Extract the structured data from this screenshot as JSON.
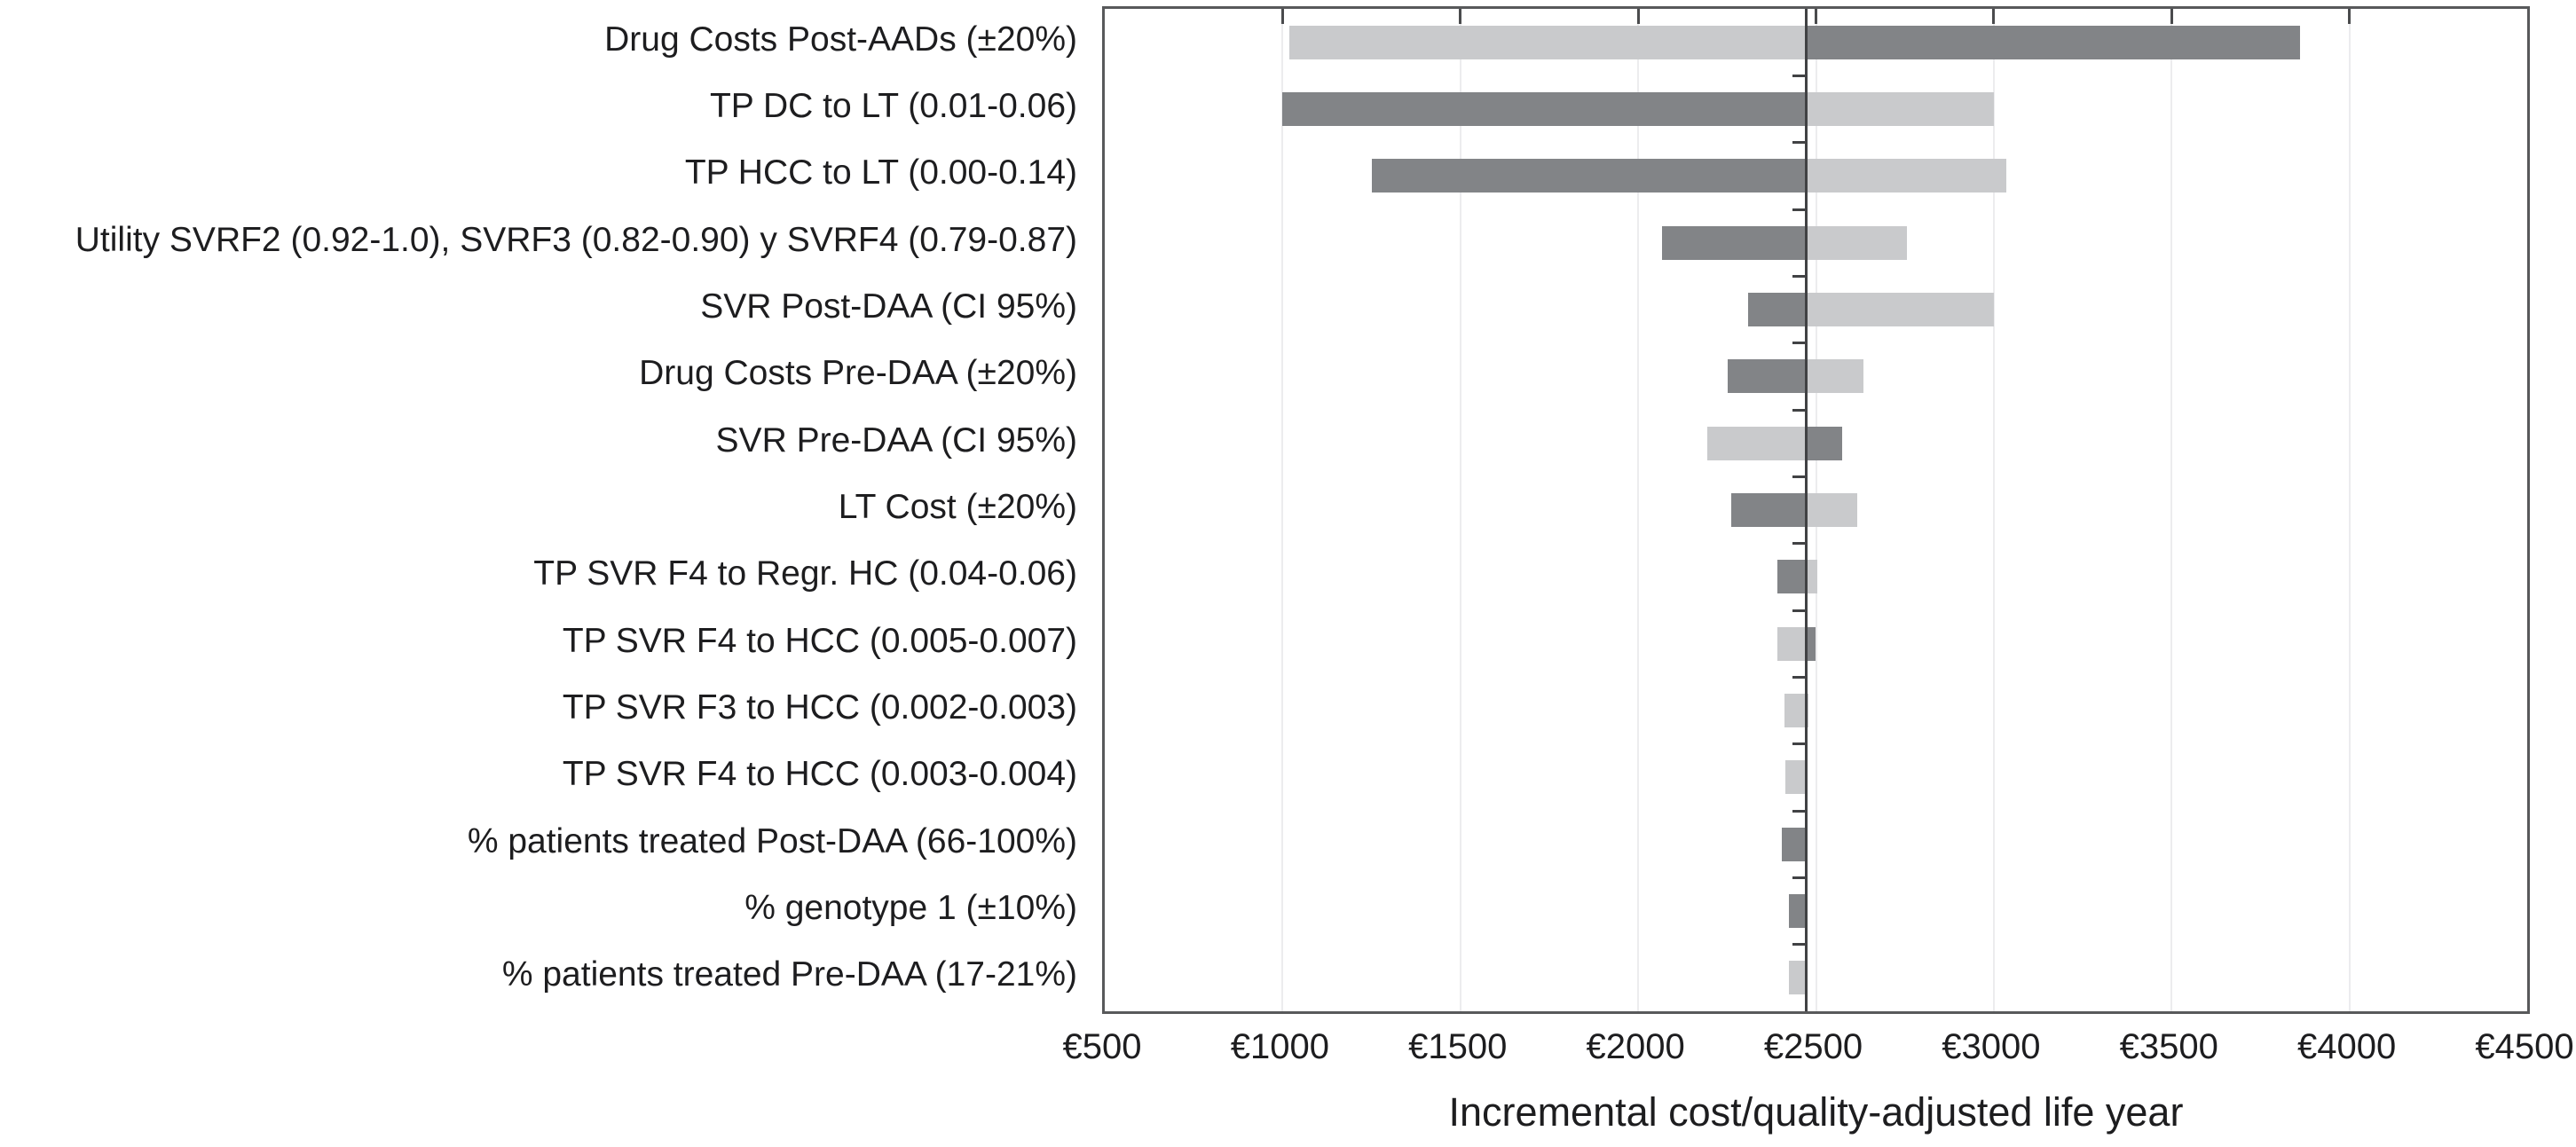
{
  "chart_data": {
    "type": "bar",
    "subtype": "tornado",
    "title": "",
    "xlabel": "Incremental cost/quality-adjusted life year",
    "ylabel": "",
    "xlim": [
      500,
      4500
    ],
    "x_ticks": [
      500,
      1000,
      1500,
      2000,
      2500,
      3000,
      3500,
      4000,
      4500
    ],
    "x_tick_labels": [
      "€500",
      "€1000",
      "€1500",
      "€2000",
      "€2500",
      "€3000",
      "€3500",
      "€4000",
      "€4500"
    ],
    "grid": "faint vertical gridlines at each tick",
    "legend": "none",
    "baseline_value": 2473,
    "bar_colors": {
      "light": "#c9cacc",
      "dark": "#828487"
    },
    "axis_color": "#58595b",
    "baseline_color": "#414244",
    "rows": [
      {
        "label": "Drug Costs Post-AADs (±20%)",
        "low": 1020,
        "high": 3860,
        "low_shade": "light",
        "high_shade": "dark"
      },
      {
        "label": "TP DC to LT (0.01-0.06)",
        "low": 1000,
        "high": 3000,
        "low_shade": "dark",
        "high_shade": "light"
      },
      {
        "label": "TP HCC to LT (0.00-0.14)",
        "low": 1250,
        "high": 3035,
        "low_shade": "dark",
        "high_shade": "light"
      },
      {
        "label": "Utility SVRF2 (0.92-1.0), SVRF3 (0.82-0.90) y SVRF4 (0.79-0.87)",
        "low": 2068,
        "high": 2757,
        "low_shade": "dark",
        "high_shade": "light"
      },
      {
        "label": "SVR Post-DAA (CI 95%)",
        "low": 2310,
        "high": 3000,
        "low_shade": "dark",
        "high_shade": "light"
      },
      {
        "label": "Drug Costs Pre-DAA (±20%)",
        "low": 2252,
        "high": 2633,
        "low_shade": "dark",
        "high_shade": "light"
      },
      {
        "label": "SVR Pre-DAA (CI 95%)",
        "low": 2195,
        "high": 2573,
        "low_shade": "light",
        "high_shade": "dark"
      },
      {
        "label": "LT Cost (±20%)",
        "low": 2262,
        "high": 2617,
        "low_shade": "dark",
        "high_shade": "light"
      },
      {
        "label": "TP SVR F4 to Regr. HC (0.04-0.06)",
        "low": 2391,
        "high": 2503,
        "low_shade": "dark",
        "high_shade": "light"
      },
      {
        "label": "TP SVR F4 to HCC (0.005-0.007)",
        "low": 2392,
        "high": 2500,
        "low_shade": "light",
        "high_shade": "dark"
      },
      {
        "label": "TP SVR F3 to HCC (0.002-0.003)",
        "low": 2412,
        "high": 2478,
        "low_shade": "light",
        "high_shade": "light"
      },
      {
        "label": "TP SVR F4 to HCC (0.003-0.004)",
        "low": 2415,
        "high": 2476,
        "low_shade": "light",
        "high_shade": "light"
      },
      {
        "label": "% patients treated Post-DAA (66-100%)",
        "low": 2405,
        "high": 2474,
        "low_shade": "dark",
        "high_shade": "dark"
      },
      {
        "label": "% genotype 1 (±10%)",
        "low": 2424,
        "high": 2474,
        "low_shade": "dark",
        "high_shade": "dark"
      },
      {
        "label": "% patients treated Pre-DAA (17-21%)",
        "low": 2424,
        "high": 2474,
        "low_shade": "light",
        "high_shade": "light"
      }
    ]
  }
}
